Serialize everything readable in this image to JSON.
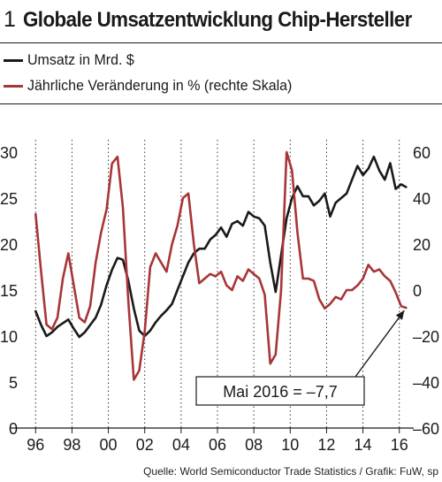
{
  "figure": {
    "number": "1",
    "title": "Globale Umsatzentwicklung Chip-Hersteller"
  },
  "legend": [
    {
      "label": "Umsatz in Mrd. $",
      "color": "#1a1a1a"
    },
    {
      "label": "Jährliche Veränderung in % (rechte Skala)",
      "color": "#a83538"
    }
  ],
  "source": "Quelle: World Semiconductor Trade Statistics / Grafik: FuW, sp",
  "chart_data": {
    "type": "line",
    "x_ticks": [
      "96",
      "98",
      "00",
      "02",
      "04",
      "06",
      "08",
      "10",
      "12",
      "14",
      "16"
    ],
    "x_range": [
      1995.5,
      2016.5
    ],
    "left_axis": {
      "ticks": [
        "0",
        "5",
        "10",
        "15",
        "20",
        "25",
        "30"
      ],
      "range": [
        0,
        30
      ]
    },
    "right_axis": {
      "ticks": [
        "-60",
        "-40",
        "-20",
        "0",
        "20",
        "40",
        "60"
      ],
      "range": [
        -60,
        60
      ]
    },
    "grid": "vertical dotted",
    "annotation": {
      "text": "Mai 2016 = –7,7",
      "points_to": [
        2016.37,
        -7.7
      ]
    },
    "series": [
      {
        "name": "Umsatz in Mrd. $",
        "axis": "left",
        "color": "#1a1a1a",
        "x": [
          1996.0,
          1996.3,
          1996.6,
          1996.9,
          1997.2,
          1997.5,
          1997.8,
          1998.1,
          1998.4,
          1998.7,
          1999.0,
          1999.3,
          1999.6,
          1999.9,
          2000.2,
          2000.5,
          2000.8,
          2001.1,
          2001.4,
          2001.7,
          2002.0,
          2002.3,
          2002.6,
          2002.9,
          2003.2,
          2003.5,
          2003.8,
          2004.1,
          2004.4,
          2004.7,
          2005.0,
          2005.3,
          2005.6,
          2005.9,
          2006.2,
          2006.5,
          2006.8,
          2007.1,
          2007.4,
          2007.7,
          2008.0,
          2008.3,
          2008.6,
          2008.9,
          2009.2,
          2009.5,
          2009.8,
          2010.1,
          2010.4,
          2010.7,
          2011.0,
          2011.3,
          2011.6,
          2011.9,
          2012.2,
          2012.5,
          2012.8,
          2013.1,
          2013.4,
          2013.7,
          2014.0,
          2014.3,
          2014.6,
          2014.9,
          2015.2,
          2015.5,
          2015.8,
          2016.1,
          2016.37
        ],
        "values": [
          12.7,
          11.2,
          10.0,
          10.4,
          11.0,
          11.4,
          11.8,
          10.8,
          9.9,
          10.4,
          11.2,
          12.0,
          13.4,
          15.5,
          17.2,
          18.5,
          18.3,
          16.0,
          13.0,
          10.6,
          10.0,
          10.6,
          11.5,
          12.2,
          12.8,
          13.5,
          15.0,
          16.5,
          18.0,
          19.0,
          19.5,
          19.5,
          20.5,
          21.0,
          21.8,
          20.8,
          22.2,
          22.5,
          22.0,
          23.5,
          23.0,
          22.8,
          22.0,
          18.0,
          14.8,
          18.8,
          22.8,
          25.0,
          26.3,
          25.2,
          25.2,
          24.2,
          24.7,
          25.5,
          23.0,
          24.5,
          25.0,
          25.5,
          27.0,
          28.5,
          27.5,
          28.2,
          29.5,
          28.0,
          27.0,
          28.8,
          26.0,
          26.5,
          26.2
        ]
      },
      {
        "name": "Jährliche Veränderung in % (rechte Skala)",
        "axis": "right",
        "color": "#a83538",
        "x": [
          1996.0,
          1996.3,
          1996.6,
          1996.9,
          1997.2,
          1997.5,
          1997.8,
          1998.1,
          1998.4,
          1998.7,
          1999.0,
          1999.3,
          1999.6,
          1999.9,
          2000.2,
          2000.5,
          2000.8,
          2001.1,
          2001.4,
          2001.7,
          2002.0,
          2002.3,
          2002.6,
          2002.9,
          2003.2,
          2003.5,
          2003.8,
          2004.1,
          2004.4,
          2004.7,
          2005.0,
          2005.3,
          2005.6,
          2005.9,
          2006.2,
          2006.5,
          2006.8,
          2007.1,
          2007.4,
          2007.7,
          2008.0,
          2008.3,
          2008.6,
          2008.9,
          2009.2,
          2009.5,
          2009.8,
          2010.1,
          2010.4,
          2010.7,
          2011.0,
          2011.3,
          2011.6,
          2011.9,
          2012.2,
          2012.5,
          2012.8,
          2013.1,
          2013.4,
          2013.7,
          2014.0,
          2014.3,
          2014.6,
          2014.9,
          2015.2,
          2015.5,
          2015.8,
          2016.1,
          2016.37
        ],
        "values": [
          33,
          8,
          -15,
          -17,
          -12,
          5,
          16,
          2,
          -12,
          -14,
          -7,
          12,
          25,
          35,
          55,
          58,
          36,
          -5,
          -39,
          -35,
          -18,
          10,
          16,
          12,
          8,
          20,
          28,
          40,
          42,
          20,
          3,
          5,
          7,
          6,
          8,
          2,
          0,
          6,
          4,
          9,
          7,
          5,
          -2,
          -32,
          -28,
          0,
          60,
          52,
          25,
          5,
          5,
          4,
          -4,
          -8,
          -6,
          -3,
          -4,
          0,
          0,
          2,
          5,
          11,
          8,
          9,
          6,
          4,
          -1,
          -7,
          -7.7
        ]
      }
    ]
  }
}
